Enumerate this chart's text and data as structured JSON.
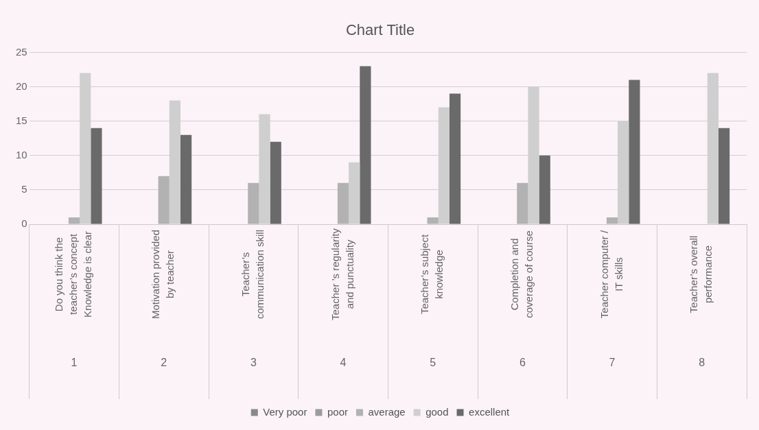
{
  "chart_data": {
    "type": "bar",
    "title": "Chart Title",
    "categories": [
      "Do you think the\nteacher’s concept\nKnowledge is clear",
      "Motivation provided\nby teacher",
      "Teacher’s\ncommunication skill",
      "Teacher ’s regularity\nand punctuality",
      "Teacher’s subject\nknowledge",
      "Completion and\ncoverage of course",
      "Teacher computer /\nIT skills",
      "Teacher’s overall\nperformance"
    ],
    "series": [
      {
        "name": "Very poor",
        "color": "#8a8a8a",
        "values": [
          0,
          0,
          0,
          0,
          0,
          0,
          0,
          0
        ]
      },
      {
        "name": "poor",
        "color": "#9c9c9c",
        "values": [
          0,
          0,
          0,
          0,
          0,
          0,
          0,
          0
        ]
      },
      {
        "name": "average",
        "color": "#b2b2b2",
        "values": [
          1,
          7,
          6,
          6,
          1,
          6,
          1,
          0
        ]
      },
      {
        "name": "good",
        "color": "#cfcfcf",
        "values": [
          22,
          18,
          16,
          9,
          17,
          20,
          15,
          22
        ]
      },
      {
        "name": "excellent",
        "color": "#6a6a6a",
        "values": [
          14,
          13,
          12,
          23,
          19,
          10,
          21,
          14
        ]
      }
    ],
    "ylim": [
      0,
      25
    ],
    "yticks": [
      0,
      5,
      10,
      15,
      20,
      25
    ],
    "grid": "y",
    "legend": "bottom",
    "annotations": [
      "1",
      "2",
      "3",
      "4",
      "5",
      "6",
      "7",
      "8"
    ]
  }
}
